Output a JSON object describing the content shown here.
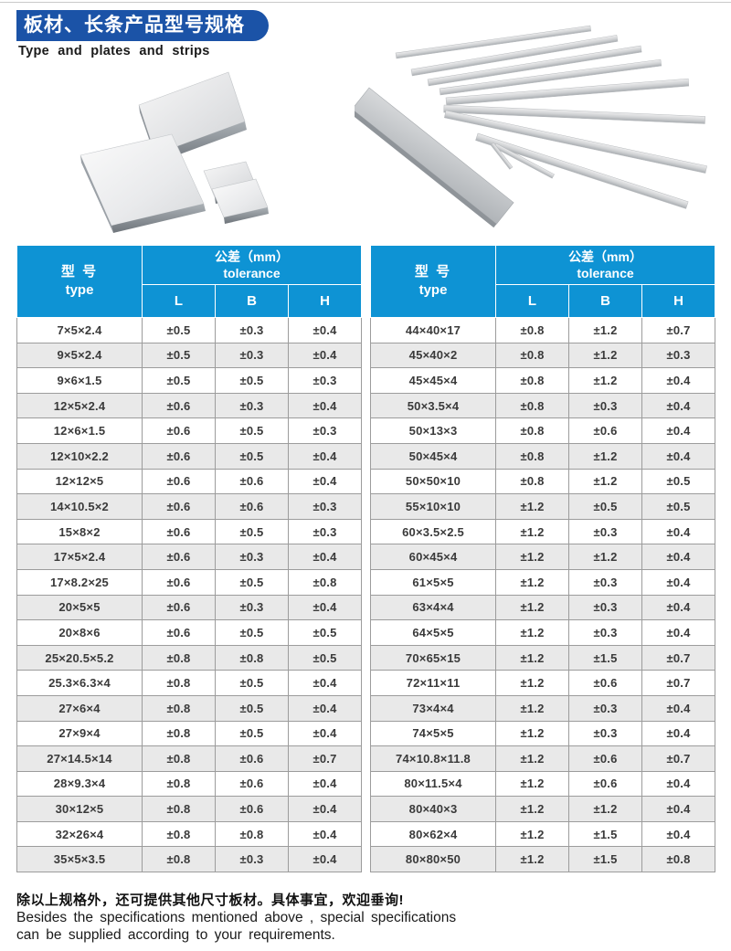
{
  "header": {
    "title_cn": "板材、长条产品型号规格",
    "title_en": "Type and plates and strips"
  },
  "images": {
    "left_alt": "plates-product-photo",
    "right_alt": "strips-product-photo"
  },
  "table_header": {
    "type_cn": "型  号",
    "type_en": "type",
    "tolerance_cn": "公差（mm）",
    "tolerance_en": "tolerance",
    "col_l": "L",
    "col_b": "B",
    "col_h": "H"
  },
  "tables": {
    "left": {
      "rows": [
        [
          "7×5×2.4",
          "±0.5",
          "±0.3",
          "±0.4"
        ],
        [
          "9×5×2.4",
          "±0.5",
          "±0.3",
          "±0.4"
        ],
        [
          "9×6×1.5",
          "±0.5",
          "±0.5",
          "±0.3"
        ],
        [
          "12×5×2.4",
          "±0.6",
          "±0.3",
          "±0.4"
        ],
        [
          "12×6×1.5",
          "±0.6",
          "±0.5",
          "±0.3"
        ],
        [
          "12×10×2.2",
          "±0.6",
          "±0.5",
          "±0.4"
        ],
        [
          "12×12×5",
          "±0.6",
          "±0.6",
          "±0.4"
        ],
        [
          "14×10.5×2",
          "±0.6",
          "±0.6",
          "±0.3"
        ],
        [
          "15×8×2",
          "±0.6",
          "±0.5",
          "±0.3"
        ],
        [
          "17×5×2.4",
          "±0.6",
          "±0.3",
          "±0.4"
        ],
        [
          "17×8.2×25",
          "±0.6",
          "±0.5",
          "±0.8"
        ],
        [
          "20×5×5",
          "±0.6",
          "±0.3",
          "±0.4"
        ],
        [
          "20×8×6",
          "±0.6",
          "±0.5",
          "±0.5"
        ],
        [
          "25×20.5×5.2",
          "±0.8",
          "±0.8",
          "±0.5"
        ],
        [
          "25.3×6.3×4",
          "±0.8",
          "±0.5",
          "±0.4"
        ],
        [
          "27×6×4",
          "±0.8",
          "±0.5",
          "±0.4"
        ],
        [
          "27×9×4",
          "±0.8",
          "±0.5",
          "±0.4"
        ],
        [
          "27×14.5×14",
          "±0.8",
          "±0.6",
          "±0.7"
        ],
        [
          "28×9.3×4",
          "±0.8",
          "±0.6",
          "±0.4"
        ],
        [
          "30×12×5",
          "±0.8",
          "±0.6",
          "±0.4"
        ],
        [
          "32×26×4",
          "±0.8",
          "±0.8",
          "±0.4"
        ],
        [
          "35×5×3.5",
          "±0.8",
          "±0.3",
          "±0.4"
        ]
      ]
    },
    "right": {
      "rows": [
        [
          "44×40×17",
          "±0.8",
          "±1.2",
          "±0.7"
        ],
        [
          "45×40×2",
          "±0.8",
          "±1.2",
          "±0.3"
        ],
        [
          "45×45×4",
          "±0.8",
          "±1.2",
          "±0.4"
        ],
        [
          "50×3.5×4",
          "±0.8",
          "±0.3",
          "±0.4"
        ],
        [
          "50×13×3",
          "±0.8",
          "±0.6",
          "±0.4"
        ],
        [
          "50×45×4",
          "±0.8",
          "±1.2",
          "±0.4"
        ],
        [
          "50×50×10",
          "±0.8",
          "±1.2",
          "±0.5"
        ],
        [
          "55×10×10",
          "±1.2",
          "±0.5",
          "±0.5"
        ],
        [
          "60×3.5×2.5",
          "±1.2",
          "±0.3",
          "±0.4"
        ],
        [
          "60×45×4",
          "±1.2",
          "±1.2",
          "±0.4"
        ],
        [
          "61×5×5",
          "±1.2",
          "±0.3",
          "±0.4"
        ],
        [
          "63×4×4",
          "±1.2",
          "±0.3",
          "±0.4"
        ],
        [
          "64×5×5",
          "±1.2",
          "±0.3",
          "±0.4"
        ],
        [
          "70×65×15",
          "±1.2",
          "±1.5",
          "±0.7"
        ],
        [
          "72×11×11",
          "±1.2",
          "±0.6",
          "±0.7"
        ],
        [
          "73×4×4",
          "±1.2",
          "±0.3",
          "±0.4"
        ],
        [
          "74×5×5",
          "±1.2",
          "±0.3",
          "±0.4"
        ],
        [
          "74×10.8×11.8",
          "±1.2",
          "±0.6",
          "±0.7"
        ],
        [
          "80×11.5×4",
          "±1.2",
          "±0.6",
          "±0.4"
        ],
        [
          "80×40×3",
          "±1.2",
          "±1.2",
          "±0.4"
        ],
        [
          "80×62×4",
          "±1.2",
          "±1.5",
          "±0.4"
        ],
        [
          "80×80×50",
          "±1.2",
          "±1.5",
          "±0.8"
        ]
      ]
    }
  },
  "footer": {
    "line_cn": "除以上规格外，还可提供其他尺寸板材。具体事宜，欢迎垂询!",
    "line_en_1": "Besides  the  specifications  mentioned  above , special  specifications",
    "line_en_2": "can  be  supplied  according  to  your  requirements."
  },
  "colors": {
    "banner_blue": "#1b53a7",
    "table_header_blue": "#0e93d4",
    "row_alt": "#e9e9e9",
    "grid": "#9c9c9c",
    "text": "#333333"
  }
}
